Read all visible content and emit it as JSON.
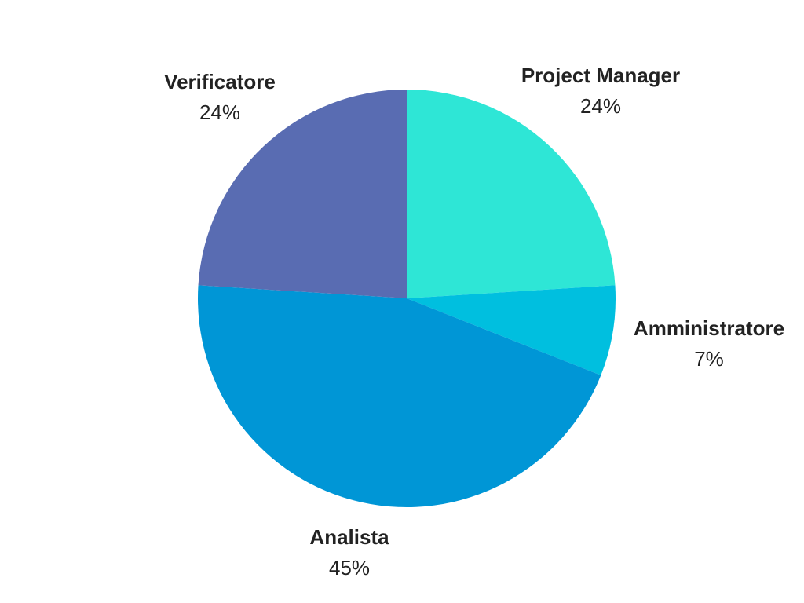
{
  "chart_data": {
    "type": "pie",
    "title": "",
    "slices": [
      {
        "label": "Project Manager",
        "value": 24,
        "display": "24%",
        "color": "#2EE6D6"
      },
      {
        "label": "Amministratore",
        "value": 7,
        "display": "7%",
        "color": "#00BFDF"
      },
      {
        "label": "Analista",
        "value": 45,
        "display": "45%",
        "color": "#0096D6"
      },
      {
        "label": "Verificatore",
        "value": 24,
        "display": "24%",
        "color": "#596CB2"
      }
    ],
    "start_angle": "12 o'clock",
    "direction": "clockwise",
    "labels_outside": true
  }
}
